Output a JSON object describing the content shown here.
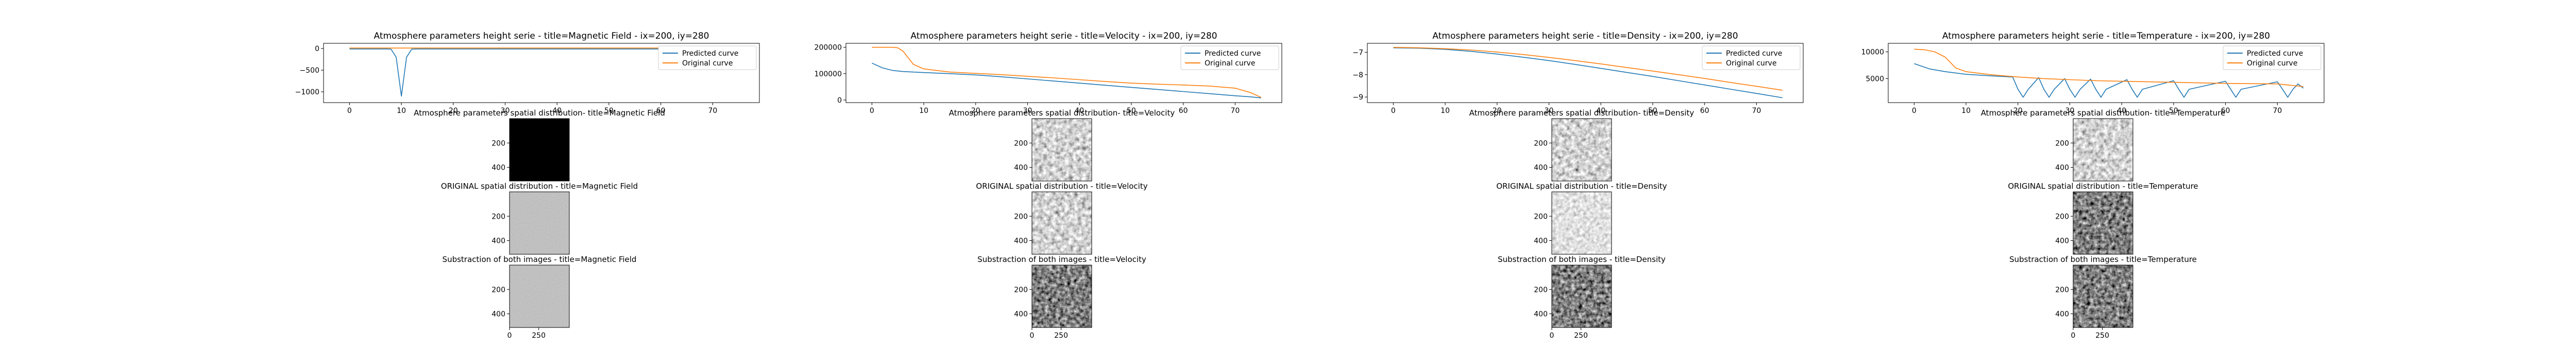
{
  "figure": {
    "line_prefix": "Atmosphere parameters height serie - title=",
    "line_suffix": " - ix=200, iy=280",
    "predicted_prefix": "Atmosphere parameters spatial distribution- title=",
    "original_prefix": "ORIGINAL spatial distribution - title=",
    "diff_prefix": "Substraction of both images - title="
  },
  "colors": {
    "predicted": "#1f77b4",
    "original": "#ff7f0e",
    "axis": "#000000"
  },
  "chart_data": [
    {
      "type": "line",
      "parameter": "Magnetic Field",
      "title": "Atmosphere parameters height serie - title=Magnetic Field - ix=200, iy=280",
      "xlim": [
        -5,
        79
      ],
      "ylim": [
        -1250,
        120
      ],
      "xticks": [
        0,
        10,
        20,
        30,
        40,
        50,
        60,
        70
      ],
      "yticks": [
        0,
        -500,
        -1000
      ],
      "ytick_labels": [
        "0",
        "−500",
        "−1000"
      ],
      "legend": {
        "position": "upper right",
        "entries": [
          "Predicted curve",
          "Original curve"
        ]
      },
      "series": [
        {
          "name": "Predicted curve",
          "x": [
            0,
            1,
            2,
            3,
            4,
            5,
            6,
            7,
            8,
            9,
            10,
            11,
            12,
            13,
            14,
            15,
            20,
            25,
            30,
            35,
            40,
            45,
            50,
            55,
            60,
            65,
            70,
            75
          ],
          "y": [
            -10,
            -10,
            -10,
            -10,
            -10,
            -10,
            -10,
            -10,
            -15,
            -200,
            -1100,
            -200,
            -15,
            -10,
            -10,
            -10,
            -10,
            -10,
            -10,
            -10,
            -10,
            -10,
            -10,
            -10,
            -10,
            -10,
            -10,
            -10
          ]
        },
        {
          "name": "Original curve",
          "x": [
            0,
            10,
            20,
            30,
            40,
            50,
            60,
            70,
            75
          ],
          "y": [
            10,
            10,
            10,
            10,
            10,
            10,
            10,
            10,
            10
          ]
        }
      ]
    },
    {
      "type": "line",
      "parameter": "Velocity",
      "title": "Atmosphere parameters height serie - title=Velocity - ix=200, iy=280",
      "xlim": [
        -5,
        79
      ],
      "ylim": [
        -10000,
        215000
      ],
      "xticks": [
        0,
        10,
        20,
        30,
        40,
        50,
        60,
        70
      ],
      "yticks": [
        0,
        100000,
        200000
      ],
      "ytick_labels": [
        "0",
        "100000",
        "200000"
      ],
      "legend": {
        "position": "upper right",
        "entries": [
          "Predicted curve",
          "Original curve"
        ]
      },
      "series": [
        {
          "name": "Predicted curve",
          "x": [
            0,
            2,
            4,
            6,
            8,
            10,
            15,
            20,
            25,
            30,
            35,
            40,
            45,
            50,
            55,
            60,
            65,
            70,
            73,
            75
          ],
          "y": [
            140000,
            122000,
            112000,
            108000,
            106000,
            104000,
            100000,
            95000,
            88000,
            80000,
            72000,
            64000,
            56000,
            48000,
            40000,
            32000,
            24000,
            16000,
            12000,
            8000
          ]
        },
        {
          "name": "Original curve",
          "x": [
            0,
            1,
            2,
            3,
            4,
            5,
            6,
            8,
            10,
            15,
            20,
            25,
            30,
            35,
            40,
            45,
            50,
            55,
            60,
            65,
            70,
            73,
            75
          ],
          "y": [
            200000,
            200000,
            200000,
            200000,
            200000,
            198000,
            185000,
            135000,
            118000,
            106000,
            101000,
            96000,
            90000,
            84000,
            77000,
            70000,
            64000,
            60000,
            57000,
            53000,
            45000,
            28000,
            10000
          ]
        }
      ]
    },
    {
      "type": "line",
      "parameter": "Density",
      "title": "Atmosphere parameters height serie - title=Density - ix=200, iy=280",
      "xlim": [
        -5,
        79
      ],
      "ylim": [
        -9.25,
        -6.6
      ],
      "xticks": [
        0,
        10,
        20,
        30,
        40,
        50,
        60,
        70
      ],
      "yticks": [
        -7,
        -8,
        -9
      ],
      "ytick_labels": [
        "−7",
        "−8",
        "−9"
      ],
      "legend": {
        "position": "upper right",
        "entries": [
          "Predicted curve",
          "Original curve"
        ]
      },
      "series": [
        {
          "name": "Predicted curve",
          "x": [
            0,
            5,
            10,
            15,
            20,
            25,
            30,
            35,
            40,
            45,
            50,
            55,
            60,
            65,
            70,
            75
          ],
          "y": [
            -6.8,
            -6.82,
            -6.87,
            -6.96,
            -7.08,
            -7.22,
            -7.37,
            -7.54,
            -7.72,
            -7.9,
            -8.08,
            -8.27,
            -8.46,
            -8.65,
            -8.84,
            -9.03
          ]
        },
        {
          "name": "Original curve",
          "x": [
            0,
            5,
            10,
            15,
            20,
            25,
            30,
            35,
            40,
            45,
            50,
            55,
            60,
            65,
            70,
            75
          ],
          "y": [
            -6.78,
            -6.8,
            -6.84,
            -6.9,
            -6.99,
            -7.1,
            -7.23,
            -7.37,
            -7.52,
            -7.68,
            -7.84,
            -8.0,
            -8.17,
            -8.35,
            -8.52,
            -8.7
          ]
        }
      ]
    },
    {
      "type": "line",
      "parameter": "Temperature",
      "title": "Atmosphere parameters height serie - title=Temperature - ix=200, iy=280",
      "xlim": [
        -5,
        79
      ],
      "ylim": [
        500,
        11600
      ],
      "xticks": [
        0,
        10,
        20,
        30,
        40,
        50,
        60,
        70
      ],
      "yticks": [
        5000,
        10000
      ],
      "ytick_labels": [
        "5000",
        "10000"
      ],
      "legend": {
        "position": "upper right",
        "entries": [
          "Predicted curve",
          "Original curve"
        ]
      },
      "series": [
        {
          "name": "Predicted curve",
          "x": [
            0,
            3,
            6,
            10,
            15,
            19,
            20,
            21,
            22,
            24,
            25,
            26,
            27,
            29,
            30,
            31,
            32,
            34,
            35,
            36,
            37,
            41,
            42,
            43,
            44,
            50,
            51,
            52,
            53,
            60,
            61,
            62,
            63,
            70,
            71,
            72,
            73,
            74,
            75
          ],
          "y": [
            7800,
            6800,
            6300,
            5800,
            5500,
            5300,
            3000,
            1500,
            3000,
            5200,
            3000,
            1500,
            3000,
            5000,
            3000,
            1500,
            3000,
            4900,
            3000,
            1500,
            3000,
            4800,
            3000,
            1500,
            3000,
            4600,
            3000,
            1500,
            3000,
            4500,
            3000,
            1500,
            3000,
            4400,
            3000,
            1500,
            3000,
            4000,
            3200
          ]
        },
        {
          "name": "Original curve",
          "x": [
            0,
            2,
            4,
            6,
            8,
            10,
            15,
            20,
            25,
            30,
            35,
            40,
            45,
            50,
            55,
            60,
            65,
            70,
            75
          ],
          "y": [
            10500,
            10400,
            10000,
            9000,
            7000,
            6300,
            5700,
            5300,
            5000,
            4800,
            4600,
            4500,
            4400,
            4300,
            4200,
            4100,
            4050,
            4000,
            3500
          ]
        }
      ]
    }
  ],
  "panels": [
    {
      "param": "Magnetic Field",
      "images": [
        {
          "kind": "predicted",
          "title": "Atmosphere parameters spatial distribution- title=Magnetic Field",
          "fill": "black"
        },
        {
          "kind": "original",
          "title": "ORIGINAL spatial distribution - title=Magnetic Field",
          "fill": "grey"
        },
        {
          "kind": "difference",
          "title": "Substraction of both images - title=Magnetic Field",
          "fill": "grey"
        }
      ]
    },
    {
      "param": "Velocity",
      "images": [
        {
          "kind": "predicted",
          "title": "Atmosphere parameters spatial distribution- title=Velocity",
          "fill": "cells"
        },
        {
          "kind": "original",
          "title": "ORIGINAL spatial distribution - title=Velocity",
          "fill": "cells"
        },
        {
          "kind": "difference",
          "title": "Substraction of both images - title=Velocity",
          "fill": "dark"
        }
      ]
    },
    {
      "param": "Density",
      "images": [
        {
          "kind": "predicted",
          "title": "Atmosphere parameters spatial distribution- title=Density",
          "fill": "cells"
        },
        {
          "kind": "original",
          "title": "ORIGINAL spatial distribution - title=Density",
          "fill": "light"
        },
        {
          "kind": "difference",
          "title": "Substraction of both images - title=Density",
          "fill": "dark"
        }
      ]
    },
    {
      "param": "Temperature",
      "images": [
        {
          "kind": "predicted",
          "title": "Atmosphere parameters spatial distribution- title=Temperature",
          "fill": "cells"
        },
        {
          "kind": "original",
          "title": "ORIGINAL spatial distribution - title=Temperature",
          "fill": "dark"
        },
        {
          "kind": "difference",
          "title": "Substraction of both images - title=Temperature",
          "fill": "dark"
        }
      ]
    }
  ],
  "image_axes": {
    "yticks": [
      200,
      400
    ],
    "ytick_labels": [
      "200",
      "400"
    ],
    "xticks": [
      0,
      250
    ],
    "xtick_labels": [
      "0",
      "250"
    ],
    "range": [
      0,
      512
    ]
  }
}
